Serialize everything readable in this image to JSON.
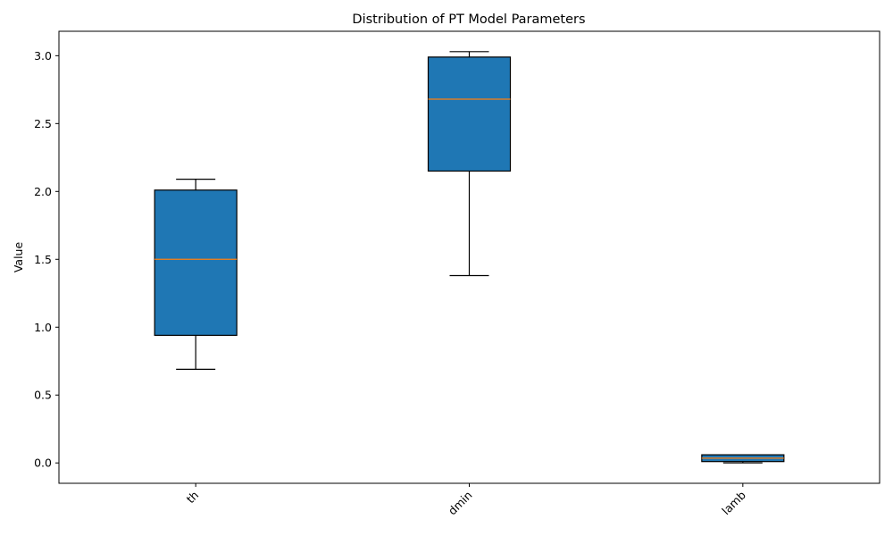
{
  "chart_data": {
    "type": "box",
    "title": "Distribution of PT Model Parameters",
    "xlabel": "",
    "ylabel": "Value",
    "ylim": [
      -0.15,
      3.18
    ],
    "yticks": [
      0.0,
      0.5,
      1.0,
      1.5,
      2.0,
      2.5,
      3.0
    ],
    "ytick_labels": [
      "0.0",
      "0.5",
      "1.0",
      "1.5",
      "2.0",
      "2.5",
      "3.0"
    ],
    "categories": [
      "th",
      "dmin",
      "lamb"
    ],
    "boxes": [
      {
        "name": "th",
        "whisker_low": 0.69,
        "q1": 0.94,
        "median": 1.5,
        "q3": 2.01,
        "whisker_high": 2.09
      },
      {
        "name": "dmin",
        "whisker_low": 1.38,
        "q1": 2.15,
        "median": 2.68,
        "q3": 2.99,
        "whisker_high": 3.03
      },
      {
        "name": "lamb",
        "whisker_low": 0.0,
        "q1": 0.01,
        "median": 0.035,
        "q3": 0.06,
        "whisker_high": 0.06
      }
    ],
    "grid": false,
    "legend": "none",
    "colors": {
      "box_fill": "#1f77b4",
      "median": "#ff7f0e",
      "edge": "#000000"
    }
  }
}
